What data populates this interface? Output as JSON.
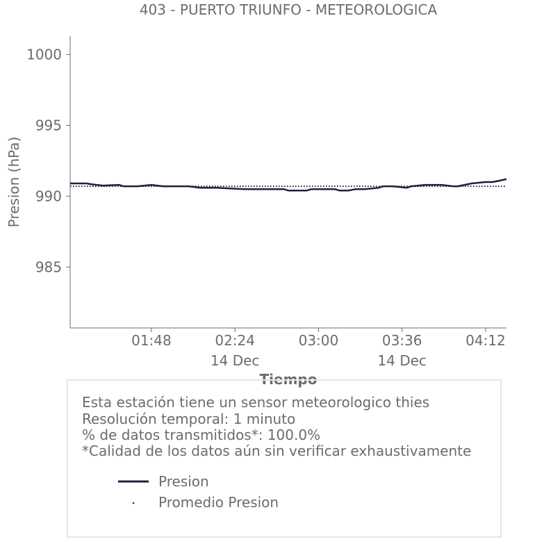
{
  "chart_data": {
    "type": "line",
    "title": "403 - PUERTO TRIUNFO - METEOROLOGICA",
    "xlabel": "Tiempo",
    "ylabel": "Presion (hPa)",
    "ylim": [
      980.7,
      1001.3
    ],
    "xlim": [
      "01:13",
      "04:21"
    ],
    "yticks": [
      985,
      990,
      995,
      1000
    ],
    "xticks": [
      {
        "time": "01:48",
        "label": "01:48",
        "sublabel": ""
      },
      {
        "time": "02:24",
        "label": "02:24",
        "sublabel": "14 Dec"
      },
      {
        "time": "03:00",
        "label": "03:00",
        "sublabel": ""
      },
      {
        "time": "03:36",
        "label": "03:36",
        "sublabel": "14 Dec"
      },
      {
        "time": "04:12",
        "label": "04:12",
        "sublabel": ""
      }
    ],
    "grid": false,
    "series": [
      {
        "name": "Presion",
        "color": "#1f1f3f",
        "style": "solid",
        "x": [
          "01:13",
          "01:20",
          "01:22",
          "01:27",
          "01:34",
          "01:36",
          "01:42",
          "01:48",
          "01:53",
          "01:59",
          "02:04",
          "02:09",
          "02:16",
          "02:28",
          "02:45",
          "02:47",
          "02:55",
          "02:57",
          "03:07",
          "03:09",
          "03:13",
          "03:16",
          "03:20",
          "03:26",
          "03:28",
          "03:32",
          "03:38",
          "03:40",
          "03:46",
          "03:53",
          "03:58",
          "04:00",
          "04:06",
          "04:12",
          "04:15",
          "04:18",
          "04:21"
        ],
        "y": [
          990.9,
          990.9,
          990.85,
          990.75,
          990.8,
          990.7,
          990.7,
          990.8,
          990.7,
          990.7,
          990.7,
          990.6,
          990.6,
          990.5,
          990.5,
          990.4,
          990.4,
          990.5,
          990.5,
          990.4,
          990.4,
          990.5,
          990.5,
          990.6,
          990.7,
          990.7,
          990.6,
          990.7,
          990.8,
          990.8,
          990.7,
          990.7,
          990.9,
          991.0,
          991.0,
          991.1,
          991.2
        ]
      },
      {
        "name": "Promedio Presion",
        "color": "#1f1f3f",
        "style": "dotted",
        "x": [
          "01:13",
          "04:21"
        ],
        "y": [
          990.7,
          990.7
        ]
      }
    ],
    "legend_position": "bottom-left"
  },
  "info": {
    "lines": [
      "Esta estación tiene un sensor meteorologico thies",
      "Resolución temporal: 1 minuto",
      "% de datos transmitidos*: 100.0%",
      "*Calidad de los datos aún sin verificar exhaustivamente"
    ],
    "legend": [
      {
        "label": "Presion",
        "kind": "line"
      },
      {
        "label": "Promedio Presion",
        "kind": "dot"
      }
    ]
  },
  "colors": {
    "series": "#1f1f3f",
    "text": "#6b6b6b",
    "axis": "#6b6b6b",
    "box_border": "#e6e6e6"
  }
}
